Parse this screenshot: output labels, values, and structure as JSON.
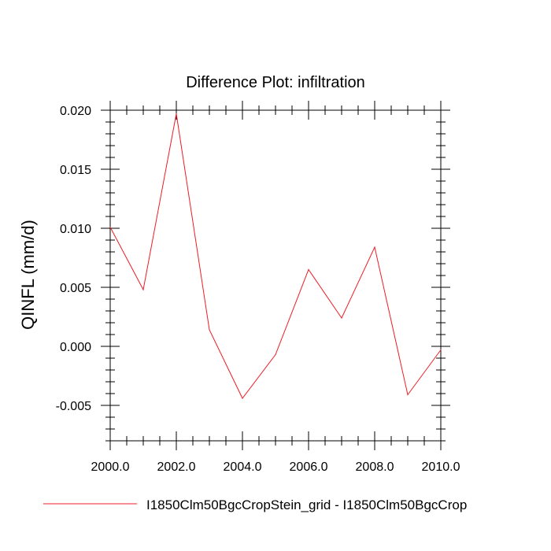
{
  "chart_data": {
    "type": "line",
    "title": "Difference Plot: infiltration",
    "xlabel": "",
    "ylabel": "QINFL  (mm/d)",
    "xlim": [
      2000,
      2010
    ],
    "ylim": [
      -0.008,
      0.02
    ],
    "x_ticks": [
      2000,
      2002,
      2004,
      2006,
      2008,
      2010
    ],
    "x_tick_labels": [
      "2000.0",
      "2002.0",
      "2004.0",
      "2006.0",
      "2008.0",
      "2010.0"
    ],
    "y_ticks": [
      -0.005,
      0.0,
      0.005,
      0.01,
      0.015,
      0.02
    ],
    "y_tick_labels": [
      "-0.005",
      "0.000",
      "0.005",
      "0.010",
      "0.015",
      "0.020"
    ],
    "grid": false,
    "legend_position": "bottom",
    "series": [
      {
        "name": "I1850Clm50BgcCropStein_grid - I1850Clm50BgcCrop",
        "color": "#ee1c24",
        "x": [
          2000,
          2001,
          2002,
          2003,
          2004,
          2005,
          2006,
          2007,
          2008,
          2009,
          2010
        ],
        "values": [
          0.0101,
          0.0048,
          0.0197,
          0.0014,
          -0.0044,
          -0.0007,
          0.0065,
          0.0024,
          0.0084,
          -0.0041,
          -0.0003
        ]
      }
    ]
  }
}
